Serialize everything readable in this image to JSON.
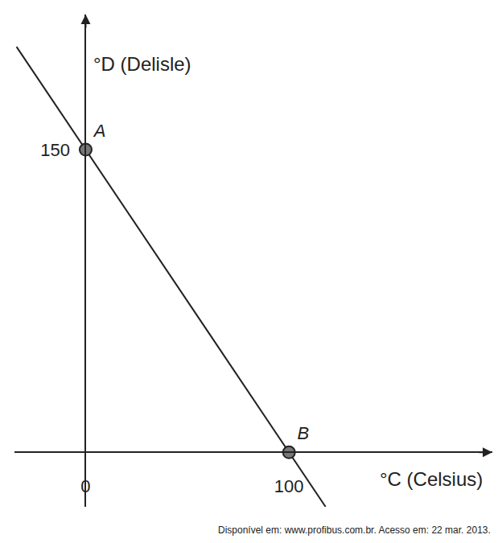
{
  "chart_data": {
    "type": "line",
    "xlabel": "°C (Celsius)",
    "ylabel": "°D (Delisle)",
    "source": "Disponível em: www.profibus.com.br. Acesso em: 22 mar. 2013.",
    "xlim": [
      -35,
      200
    ],
    "ylim": [
      -27,
      217
    ],
    "xticks": [
      0,
      100
    ],
    "yticks": [
      150
    ],
    "grid": false,
    "series": [
      {
        "type": "line",
        "color": "#222222",
        "x": [
          -34,
          118
        ],
        "y": [
          201,
          -27
        ]
      },
      {
        "type": "scatter",
        "color": "#777777",
        "marker": "circle",
        "x": [
          0,
          100
        ],
        "y": [
          150,
          0
        ],
        "point_labels": [
          "A",
          "B"
        ]
      }
    ]
  }
}
